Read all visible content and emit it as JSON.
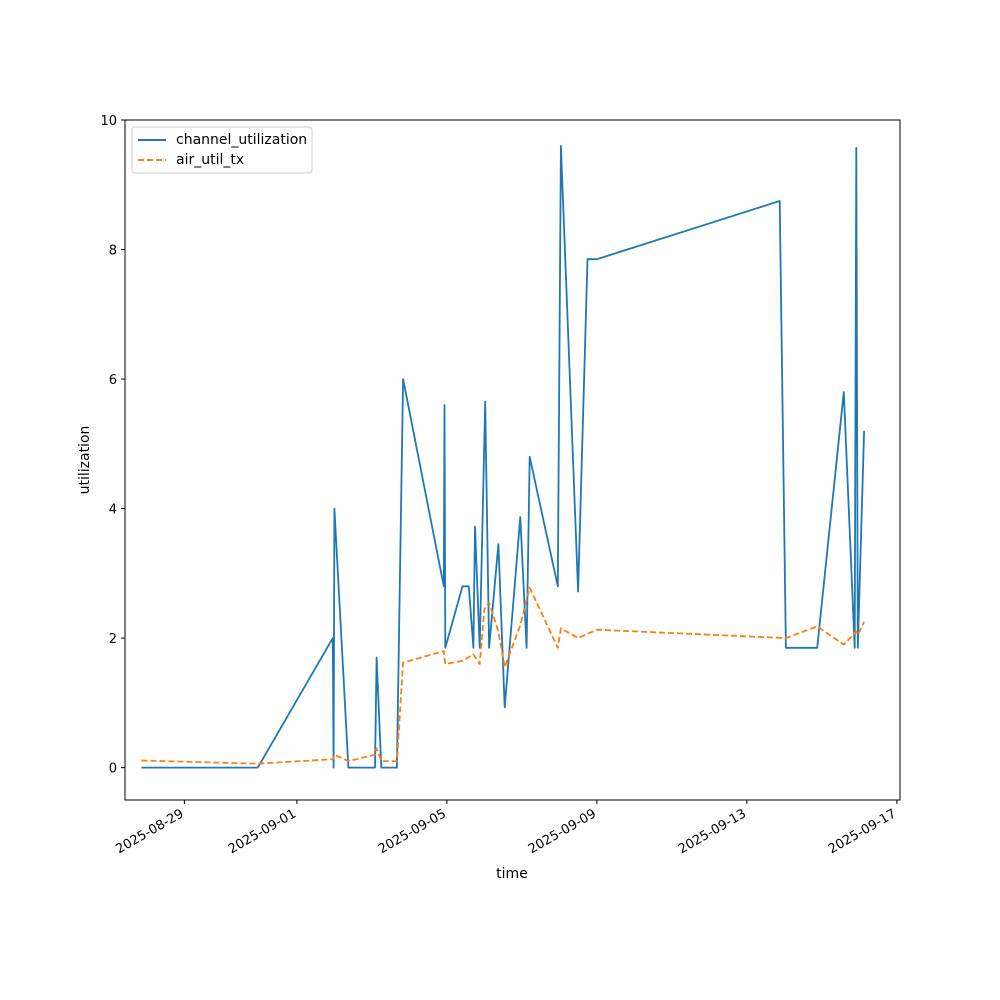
{
  "chart_data": {
    "type": "line",
    "title": "",
    "xlabel": "time",
    "ylabel": "utilization",
    "x_axis_type": "date",
    "xlim": [
      "2025-08-27T10:00",
      "2025-09-17T02:00"
    ],
    "ylim": [
      -0.5,
      10
    ],
    "x_ticks": [
      "2025-08-29",
      "2025-09-01",
      "2025-09-05",
      "2025-09-09",
      "2025-09-13",
      "2025-09-17"
    ],
    "y_ticks": [
      0,
      2,
      4,
      6,
      8,
      10
    ],
    "grid": false,
    "legend": {
      "position": "top-left"
    },
    "series": [
      {
        "name": "channel_utilization",
        "color": "#1f77b4",
        "style": "solid",
        "points": [
          [
            "2025-08-27T20:30",
            0
          ],
          [
            "2025-08-30T23:00",
            0
          ],
          [
            "2025-09-01T23:00",
            2.0
          ],
          [
            "2025-09-01T23:30",
            0
          ],
          [
            "2025-09-01T23:45",
            2.0
          ],
          [
            "2025-09-02T00:00",
            4.0
          ],
          [
            "2025-09-02T09:00",
            0
          ],
          [
            "2025-09-03T02:00",
            0
          ],
          [
            "2025-09-03T03:00",
            1.7
          ],
          [
            "2025-09-03T06:00",
            0
          ],
          [
            "2025-09-03T16:00",
            0
          ],
          [
            "2025-09-03T20:00",
            6.0
          ],
          [
            "2025-09-04T22:00",
            2.8
          ],
          [
            "2025-09-04T22:30",
            5.6
          ],
          [
            "2025-09-04T23:00",
            1.85
          ],
          [
            "2025-09-05T10:00",
            2.8
          ],
          [
            "2025-09-05T14:00",
            2.8
          ],
          [
            "2025-09-05T17:00",
            1.85
          ],
          [
            "2025-09-05T18:00",
            3.72
          ],
          [
            "2025-09-05T21:00",
            1.85
          ],
          [
            "2025-09-06T00:30",
            5.65
          ],
          [
            "2025-09-06T03:00",
            1.85
          ],
          [
            "2025-09-06T09:00",
            3.45
          ],
          [
            "2025-09-06T13:00",
            0.93
          ],
          [
            "2025-09-06T23:00",
            3.87
          ],
          [
            "2025-09-07T03:00",
            1.85
          ],
          [
            "2025-09-07T05:00",
            4.8
          ],
          [
            "2025-09-07T23:00",
            2.8
          ],
          [
            "2025-09-08T01:00",
            9.6
          ],
          [
            "2025-09-08T12:00",
            2.72
          ],
          [
            "2025-09-08T18:00",
            7.85
          ],
          [
            "2025-09-09T00:00",
            7.85
          ],
          [
            "2025-09-13T21:00",
            8.75
          ],
          [
            "2025-09-14T01:00",
            1.85
          ],
          [
            "2025-09-14T21:00",
            1.85
          ],
          [
            "2025-09-15T14:00",
            5.8
          ],
          [
            "2025-09-15T21:00",
            1.85
          ],
          [
            "2025-09-15T22:00",
            9.57
          ],
          [
            "2025-09-15T23:00",
            1.85
          ],
          [
            "2025-09-16T03:00",
            5.2
          ]
        ]
      },
      {
        "name": "air_util_tx",
        "color": "#ff7f0e",
        "style": "dashed",
        "points": [
          [
            "2025-08-27T20:30",
            0.11
          ],
          [
            "2025-08-30T23:00",
            0.06
          ],
          [
            "2025-09-01T23:00",
            0.13
          ],
          [
            "2025-09-02T00:00",
            0.2
          ],
          [
            "2025-09-02T09:00",
            0.1
          ],
          [
            "2025-09-03T02:00",
            0.2
          ],
          [
            "2025-09-03T03:00",
            0.3
          ],
          [
            "2025-09-03T06:00",
            0.1
          ],
          [
            "2025-09-03T16:00",
            0.1
          ],
          [
            "2025-09-03T20:00",
            1.62
          ],
          [
            "2025-09-04T22:00",
            1.8
          ],
          [
            "2025-09-04T23:00",
            1.6
          ],
          [
            "2025-09-05T10:00",
            1.65
          ],
          [
            "2025-09-05T17:00",
            1.75
          ],
          [
            "2025-09-05T21:00",
            1.6
          ],
          [
            "2025-09-06T00:00",
            2.45
          ],
          [
            "2025-09-06T03:00",
            2.55
          ],
          [
            "2025-09-06T09:00",
            2.1
          ],
          [
            "2025-09-06T13:00",
            1.55
          ],
          [
            "2025-09-06T23:00",
            2.2
          ],
          [
            "2025-09-07T05:00",
            2.78
          ],
          [
            "2025-09-07T23:00",
            1.85
          ],
          [
            "2025-09-08T01:00",
            2.15
          ],
          [
            "2025-09-08T12:00",
            2.0
          ],
          [
            "2025-09-09T00:00",
            2.13
          ],
          [
            "2025-09-14T01:00",
            2.0
          ],
          [
            "2025-09-14T21:00",
            2.18
          ],
          [
            "2025-09-15T14:00",
            1.9
          ],
          [
            "2025-09-15T22:00",
            2.1
          ],
          [
            "2025-09-15T23:00",
            2.05
          ],
          [
            "2025-09-16T03:00",
            2.25
          ]
        ]
      }
    ]
  }
}
